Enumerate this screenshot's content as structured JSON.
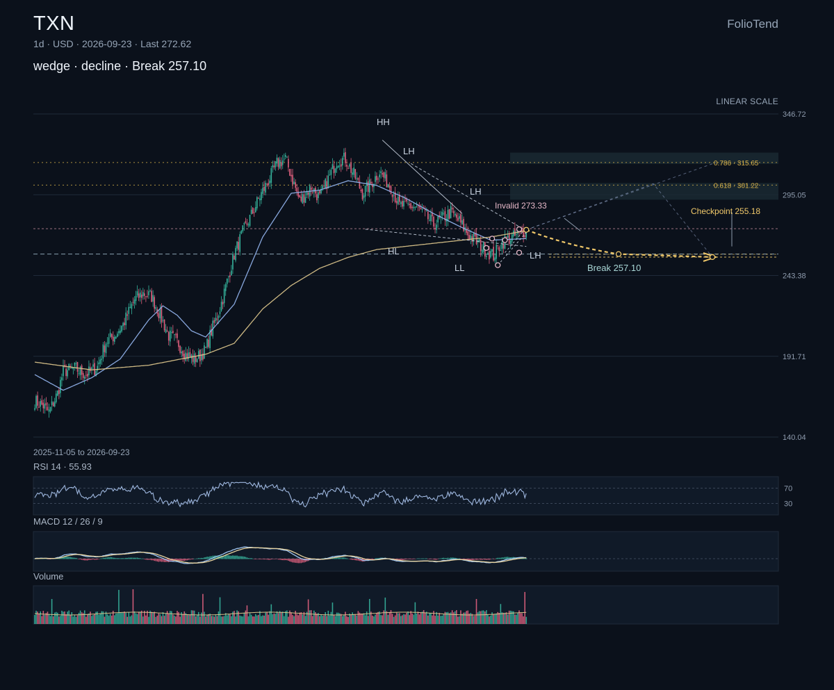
{
  "header": {
    "ticker": "TXN",
    "subtitle": "1d · USD · 2026-09-23 · Last 272.62",
    "pattern_line": "wedge · decline · Break 257.10",
    "brand": "FolioTend",
    "scale_label": "LINEAR SCALE",
    "date_range": "2025-11-05 to 2026-09-23"
  },
  "panels": {
    "rsi_label": "RSI 14 · 55.93",
    "macd_label": "MACD 12 / 26 / 9",
    "volume_label": "Volume"
  },
  "colors": {
    "up": "#36b39c",
    "down": "#e0607e",
    "ma_fast": "#8fb0e8",
    "ma_slow": "#d9c38a",
    "accent": "#f0c86a",
    "grid": "#1f2a3a"
  },
  "chart_data": {
    "type": "candlestick",
    "symbol": "TXN",
    "interval": "1d",
    "start_date": "2025-11-05",
    "end_date": "2026-09-23",
    "last": 272.62,
    "ylim": [
      140.04,
      346.72
    ],
    "yticks": [
      346.72,
      295.05,
      243.38,
      191.71,
      140.04
    ],
    "ytick_labels": [
      "346.72",
      "295.05",
      "243.38",
      "191.71",
      "140.04"
    ],
    "close_anchors": [
      [
        0,
        163
      ],
      [
        6,
        160
      ],
      [
        10,
        156
      ],
      [
        16,
        168
      ],
      [
        20,
        182
      ],
      [
        28,
        184
      ],
      [
        36,
        180
      ],
      [
        44,
        185
      ],
      [
        50,
        201
      ],
      [
        56,
        205
      ],
      [
        62,
        212
      ],
      [
        66,
        220
      ],
      [
        70,
        228
      ],
      [
        76,
        232
      ],
      [
        82,
        230
      ],
      [
        88,
        218
      ],
      [
        94,
        205
      ],
      [
        100,
        201
      ],
      [
        106,
        193
      ],
      [
        112,
        190
      ],
      [
        116,
        192
      ],
      [
        120,
        196
      ],
      [
        124,
        208
      ],
      [
        128,
        217
      ],
      [
        132,
        229
      ],
      [
        136,
        243
      ],
      [
        140,
        257
      ],
      [
        146,
        271
      ],
      [
        152,
        282
      ],
      [
        158,
        294
      ],
      [
        164,
        304
      ],
      [
        170,
        315
      ],
      [
        176,
        318
      ],
      [
        182,
        302
      ],
      [
        186,
        291
      ],
      [
        194,
        300
      ],
      [
        200,
        293
      ],
      [
        206,
        305
      ],
      [
        212,
        317
      ],
      [
        218,
        318
      ],
      [
        224,
        308
      ],
      [
        230,
        296
      ],
      [
        236,
        302
      ],
      [
        242,
        310
      ],
      [
        250,
        300
      ],
      [
        256,
        288
      ],
      [
        262,
        288
      ],
      [
        268,
        287
      ],
      [
        274,
        282
      ],
      [
        280,
        276
      ],
      [
        286,
        280
      ],
      [
        292,
        284
      ],
      [
        298,
        278
      ],
      [
        304,
        270
      ],
      [
        310,
        265
      ],
      [
        316,
        260
      ],
      [
        322,
        256
      ],
      [
        326,
        262
      ],
      [
        330,
        266
      ],
      [
        336,
        268
      ],
      [
        342,
        271
      ],
      [
        345,
        272.62
      ]
    ],
    "moving_averages": [
      {
        "name": "MA fast",
        "anchors": [
          [
            0,
            180
          ],
          [
            20,
            170
          ],
          [
            40,
            178
          ],
          [
            60,
            190
          ],
          [
            80,
            215
          ],
          [
            90,
            224
          ],
          [
            100,
            218
          ],
          [
            110,
            208
          ],
          [
            120,
            204
          ],
          [
            140,
            225
          ],
          [
            160,
            268
          ],
          [
            180,
            296
          ],
          [
            200,
            298
          ],
          [
            220,
            304
          ],
          [
            240,
            301
          ],
          [
            260,
            293
          ],
          [
            280,
            283
          ],
          [
            300,
            274
          ],
          [
            320,
            266
          ],
          [
            345,
            267
          ]
        ]
      },
      {
        "name": "MA slow",
        "anchors": [
          [
            0,
            188
          ],
          [
            40,
            183
          ],
          [
            80,
            186
          ],
          [
            120,
            193
          ],
          [
            140,
            200
          ],
          [
            160,
            222
          ],
          [
            180,
            237
          ],
          [
            200,
            248
          ],
          [
            220,
            255
          ],
          [
            240,
            260
          ],
          [
            260,
            262
          ],
          [
            280,
            264
          ],
          [
            300,
            266
          ],
          [
            320,
            268
          ],
          [
            345,
            272
          ]
        ]
      }
    ],
    "levels": {
      "fib_786": {
        "label": "0.786 · 315.65",
        "value": 315.65
      },
      "fib_618": {
        "label": "0.618 · 301.22",
        "value": 301.22
      },
      "invalid": {
        "label": "Invalid 273.33",
        "value": 273.33
      },
      "break": {
        "label": "Break 257.10",
        "value": 257.1
      },
      "checkpoint": {
        "label": "Checkpoint 255.18",
        "value": 255.18
      }
    },
    "swing_labels": [
      {
        "text": "HH",
        "bar": 244,
        "value": 325
      },
      {
        "text": "LH",
        "bar": 264,
        "value": 312
      },
      {
        "text": "LH",
        "bar": 300,
        "value": 286
      },
      {
        "text": "HL",
        "bar": 252,
        "value": 258
      },
      {
        "text": "LL",
        "bar": 296,
        "value": 248
      },
      {
        "text": "LH",
        "bar": 348,
        "value": 257
      }
    ],
    "rsi": {
      "period": 14,
      "value": 55.93,
      "upper": 70,
      "lower": 30,
      "upper_label": "70",
      "lower_label": "30"
    },
    "macd": {
      "fast": 12,
      "slow": 26,
      "signal": 9
    }
  }
}
